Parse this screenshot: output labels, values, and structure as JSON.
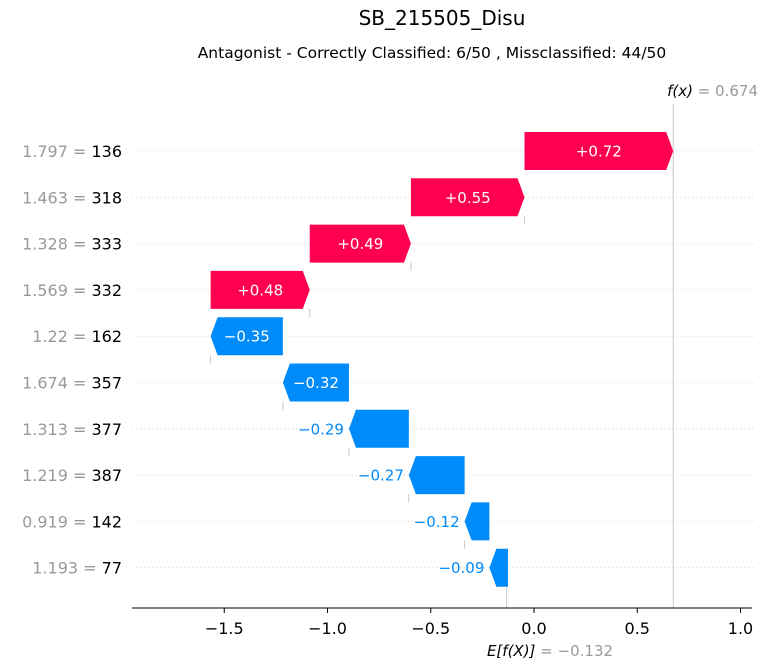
{
  "chart_data": {
    "type": "waterfall",
    "title": "SB_215505_Disu",
    "subtitle": "Antagonist - Correctly Classified: 6/50 , Missclassified: 44/50",
    "fx_symbol": "f(x)",
    "fx_value": "0.674",
    "base_symbol": "E[f(X)]",
    "base_value": "−0.132",
    "fx_numeric": 0.674,
    "base_numeric": -0.132,
    "xlim": [
      -1.95,
      1.08
    ],
    "xticks": [
      {
        "value": -1.5,
        "label": "−1.5"
      },
      {
        "value": -1.0,
        "label": "−1.0"
      },
      {
        "value": -0.5,
        "label": "−0.5"
      },
      {
        "value": 0.0,
        "label": "0.0"
      },
      {
        "value": 0.5,
        "label": "0.5"
      },
      {
        "value": 1.0,
        "label": "1.0"
      }
    ],
    "features": [
      {
        "feature_value": "1.797",
        "feature_name": "136",
        "start": -0.046,
        "contribution": 0.72,
        "label": "+0.72"
      },
      {
        "feature_value": "1.463",
        "feature_name": "318",
        "start": -0.596,
        "contribution": 0.55,
        "label": "+0.55"
      },
      {
        "feature_value": "1.328",
        "feature_name": "333",
        "start": -1.086,
        "contribution": 0.49,
        "label": "+0.49"
      },
      {
        "feature_value": "1.569",
        "feature_name": "332",
        "start": -1.566,
        "contribution": 0.48,
        "label": "+0.48"
      },
      {
        "feature_value": "1.22",
        "feature_name": "162",
        "start": -1.216,
        "contribution": -0.35,
        "label": "−0.35"
      },
      {
        "feature_value": "1.674",
        "feature_name": "357",
        "start": -0.896,
        "contribution": -0.32,
        "label": "−0.32"
      },
      {
        "feature_value": "1.313",
        "feature_name": "377",
        "start": -0.606,
        "contribution": -0.29,
        "label": "−0.29"
      },
      {
        "feature_value": "1.219",
        "feature_name": "387",
        "start": -0.336,
        "contribution": -0.27,
        "label": "−0.27"
      },
      {
        "feature_value": "0.919",
        "feature_name": "142",
        "start": -0.216,
        "contribution": -0.12,
        "label": "−0.12"
      },
      {
        "feature_value": "1.193",
        "feature_name": "77",
        "start": -0.126,
        "contribution": -0.09,
        "label": "−0.09"
      }
    ],
    "colors": {
      "positive": "#ff0051",
      "negative": "#008bfb",
      "label_gray": "#999999"
    }
  }
}
